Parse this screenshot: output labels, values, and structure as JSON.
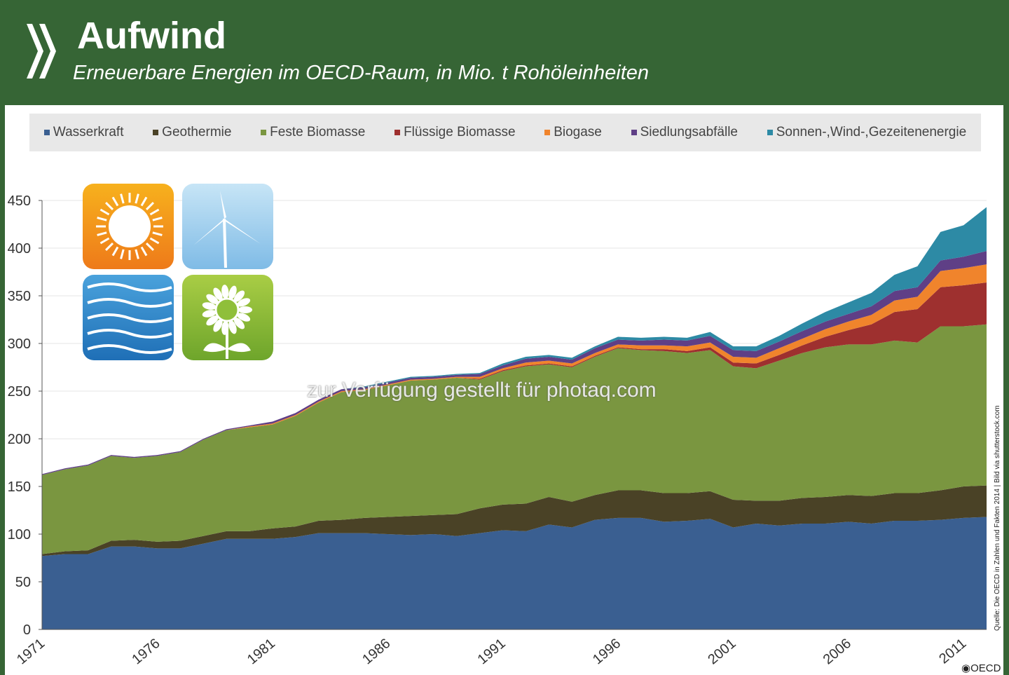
{
  "header": {
    "title": "Aufwind",
    "subtitle": "Erneuerbare Energien im OECD-Raum, in Mio. t Rohöleinheiten"
  },
  "watermark": "zur Verfügung gestellt für photaq.com",
  "source": "Quelle: Die OECD in Zahlen und Fakten 2014 | Bild via shutterstock.com",
  "logo": "OECD",
  "icons": [
    "sun-icon",
    "wind-turbine-icon",
    "water-waves-icon",
    "sunflower-icon"
  ],
  "chart_data": {
    "type": "area",
    "stacked": true,
    "title": "Aufwind",
    "subtitle": "Erneuerbare Energien im OECD-Raum, in Mio. t Rohöleinheiten",
    "xlim": [
      1971,
      2012
    ],
    "ylim": [
      0,
      450
    ],
    "yticks": [
      0,
      50,
      100,
      150,
      200,
      250,
      300,
      350,
      400,
      450
    ],
    "xticks": [
      1971,
      1976,
      1981,
      1986,
      1991,
      1996,
      2001,
      2006,
      2011
    ],
    "grid": "horizontal",
    "legend_position": "top",
    "x": [
      1971,
      1972,
      1973,
      1974,
      1975,
      1976,
      1977,
      1978,
      1979,
      1980,
      1981,
      1982,
      1983,
      1984,
      1985,
      1986,
      1987,
      1988,
      1989,
      1990,
      1991,
      1992,
      1993,
      1994,
      1995,
      1996,
      1997,
      1998,
      1999,
      2000,
      2001,
      2002,
      2003,
      2004,
      2005,
      2006,
      2007,
      2008,
      2009,
      2010,
      2011,
      2012
    ],
    "series": [
      {
        "name": "Wasserkraft",
        "color": "#3a5f91",
        "values": [
          77,
          79,
          79,
          87,
          87,
          85,
          85,
          90,
          95,
          95,
          95,
          97,
          101,
          101,
          101,
          100,
          99,
          100,
          98,
          101,
          104,
          103,
          110,
          107,
          115,
          117,
          117,
          113,
          114,
          116,
          107,
          111,
          109,
          111,
          111,
          113,
          111,
          114,
          114,
          115,
          117,
          118
        ]
      },
      {
        "name": "Geothermie",
        "color": "#4a4226",
        "values": [
          2,
          3,
          4,
          6,
          7,
          7,
          8,
          8,
          8,
          8,
          11,
          11,
          13,
          14,
          16,
          18,
          20,
          20,
          23,
          26,
          27,
          29,
          29,
          27,
          26,
          29,
          29,
          30,
          29,
          29,
          29,
          24,
          26,
          27,
          28,
          28,
          29,
          29,
          29,
          31,
          33,
          33
        ]
      },
      {
        "name": "Feste Biomasse",
        "color": "#7a9640",
        "values": [
          83,
          86,
          89,
          89,
          86,
          90,
          93,
          101,
          106,
          109,
          109,
          116,
          124,
          134,
          134,
          138,
          142,
          142,
          143,
          135,
          140,
          144,
          139,
          141,
          145,
          149,
          147,
          149,
          147,
          148,
          140,
          139,
          147,
          152,
          157,
          158,
          159,
          160,
          158,
          172,
          168,
          169
        ]
      },
      {
        "name": "Flüssige Biomasse",
        "color": "#9e302f",
        "values": [
          0,
          0,
          0,
          0,
          0,
          0,
          0,
          0,
          0,
          0,
          0,
          0,
          0,
          0,
          0,
          0,
          0,
          0,
          0,
          1,
          1,
          1,
          1,
          1,
          1,
          1,
          1,
          2,
          2,
          3,
          4,
          5,
          6,
          8,
          11,
          15,
          21,
          30,
          35,
          41,
          43,
          44
        ]
      },
      {
        "name": "Biogase",
        "color": "#f0842c",
        "values": [
          0,
          0,
          0,
          0,
          0,
          0,
          0,
          0,
          0,
          1,
          1,
          1,
          1,
          1,
          1,
          1,
          1,
          1,
          1,
          2,
          2,
          3,
          3,
          3,
          3,
          3,
          4,
          4,
          5,
          5,
          6,
          6,
          7,
          7,
          8,
          9,
          10,
          12,
          13,
          17,
          18,
          19
        ]
      },
      {
        "name": "Siedlungsabfälle",
        "color": "#5f3f86",
        "values": [
          1,
          1,
          1,
          1,
          1,
          1,
          1,
          1,
          1,
          1,
          2,
          2,
          2,
          2,
          2,
          2,
          2,
          2,
          2,
          3,
          3,
          4,
          4,
          4,
          5,
          5,
          5,
          6,
          6,
          7,
          7,
          7,
          7,
          8,
          8,
          8,
          9,
          10,
          10,
          11,
          12,
          14
        ]
      },
      {
        "name": "Sonnen-,Wind-,Gezeitenenergie",
        "color": "#2d8aa5",
        "values": [
          0,
          0,
          0,
          0,
          0,
          0,
          0,
          0,
          0,
          0,
          0,
          0,
          0,
          0,
          1,
          1,
          1,
          1,
          1,
          1,
          2,
          2,
          2,
          2,
          2,
          3,
          3,
          3,
          3,
          4,
          4,
          5,
          6,
          8,
          10,
          12,
          14,
          17,
          22,
          30,
          33,
          46
        ]
      }
    ]
  }
}
